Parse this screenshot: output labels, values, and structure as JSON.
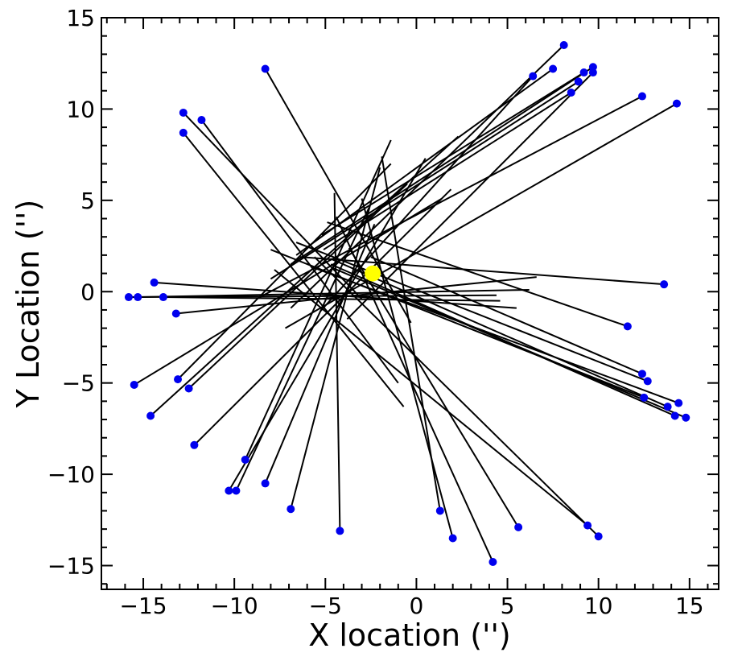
{
  "chart_data": {
    "type": "scatter",
    "title": "",
    "xlabel": "X location ('')",
    "ylabel": "Y Location ('')",
    "xlim": [
      -17.3,
      16.6
    ],
    "ylim": [
      -16.3,
      15.0
    ],
    "xticks": [
      -15,
      -10,
      -5,
      0,
      5,
      10,
      15
    ],
    "yticks": [
      -15,
      -10,
      -5,
      0,
      5,
      10,
      15
    ],
    "xtick_labels": [
      "−15",
      "−10",
      "−5",
      "0",
      "5",
      "10",
      "15"
    ],
    "ytick_labels": [
      "−15",
      "−10",
      "−5",
      "0",
      "5",
      "10",
      "15"
    ],
    "grid": false,
    "legend": "none",
    "center": {
      "x": -2.4,
      "y": 1.0,
      "color": "#ffff00"
    },
    "marker_color": "#0000ee",
    "line_color": "#000000",
    "segments": [
      {
        "start": [
          -8.3,
          12.2
        ],
        "end": [
          -0.3,
          -1.7
        ]
      },
      {
        "start": [
          -12.8,
          9.8
        ],
        "end": [
          -3.0,
          -0.4
        ]
      },
      {
        "start": [
          -11.8,
          9.4
        ],
        "end": [
          -1.0,
          -5.0
        ]
      },
      {
        "start": [
          -12.8,
          8.7
        ],
        "end": [
          -0.7,
          -6.3
        ]
      },
      {
        "start": [
          8.1,
          13.5
        ],
        "end": [
          -6.9,
          -0.9
        ]
      },
      {
        "start": [
          6.4,
          11.8
        ],
        "end": [
          -5.3,
          -1.1
        ]
      },
      {
        "start": [
          7.5,
          12.2
        ],
        "end": [
          -6.6,
          2.0
        ]
      },
      {
        "start": [
          9.2,
          12.0
        ],
        "end": [
          -5.2,
          3.1
        ]
      },
      {
        "start": [
          9.7,
          12.3
        ],
        "end": [
          -6.9,
          1.5
        ]
      },
      {
        "start": [
          9.7,
          12.0
        ],
        "end": [
          -3.8,
          -1.5
        ]
      },
      {
        "start": [
          8.9,
          11.5
        ],
        "end": [
          -8.0,
          0.7
        ]
      },
      {
        "start": [
          8.5,
          10.9
        ],
        "end": [
          -5.1,
          2.3
        ]
      },
      {
        "start": [
          12.4,
          10.7
        ],
        "end": [
          -8.6,
          -0.3
        ]
      },
      {
        "start": [
          14.3,
          10.3
        ],
        "end": [
          -7.2,
          -2.0
        ]
      },
      {
        "start": [
          13.6,
          0.4
        ],
        "end": [
          -6.4,
          1.9
        ]
      },
      {
        "start": [
          11.6,
          -1.9
        ],
        "end": [
          -4.9,
          3.8
        ]
      },
      {
        "start": [
          12.4,
          -4.5
        ],
        "end": [
          -2.5,
          1.9
        ]
      },
      {
        "start": [
          12.7,
          -4.9
        ],
        "end": [
          -6.6,
          2.7
        ]
      },
      {
        "start": [
          12.5,
          -5.8
        ],
        "end": [
          -8.0,
          2.3
        ]
      },
      {
        "start": [
          14.4,
          -6.1
        ],
        "end": [
          -5.6,
          1.3
        ]
      },
      {
        "start": [
          13.8,
          -6.3
        ],
        "end": [
          -4.7,
          1.8
        ]
      },
      {
        "start": [
          14.2,
          -6.8
        ],
        "end": [
          -4.7,
          1.5
        ]
      },
      {
        "start": [
          14.8,
          -6.9
        ],
        "end": [
          -4.6,
          1.3
        ]
      },
      {
        "start": [
          -15.8,
          -0.3
        ],
        "end": [
          4.4,
          -0.2
        ]
      },
      {
        "start": [
          -15.3,
          -0.3
        ],
        "end": [
          6.2,
          0.1
        ]
      },
      {
        "start": [
          -14.4,
          0.5
        ],
        "end": [
          5.5,
          -0.9
        ]
      },
      {
        "start": [
          -13.9,
          -0.3
        ],
        "end": [
          4.6,
          -0.5
        ]
      },
      {
        "start": [
          -13.2,
          -1.2
        ],
        "end": [
          6.6,
          0.8
        ]
      },
      {
        "start": [
          -15.5,
          -5.1
        ],
        "end": [
          1.4,
          5.1
        ]
      },
      {
        "start": [
          -13.1,
          -4.8
        ],
        "end": [
          -1.4,
          7.0
        ]
      },
      {
        "start": [
          -14.6,
          -6.8
        ],
        "end": [
          2.3,
          8.5
        ]
      },
      {
        "start": [
          -12.5,
          -5.3
        ],
        "end": [
          -0.5,
          5.9
        ]
      },
      {
        "start": [
          -12.2,
          -8.4
        ],
        "end": [
          1.9,
          5.6
        ]
      },
      {
        "start": [
          -9.4,
          -9.2
        ],
        "end": [
          -1.4,
          8.3
        ]
      },
      {
        "start": [
          -10.3,
          -10.9
        ],
        "end": [
          0.5,
          7.3
        ]
      },
      {
        "start": [
          -9.9,
          -10.9
        ],
        "end": [
          -2.6,
          4.6
        ]
      },
      {
        "start": [
          -8.3,
          -10.5
        ],
        "end": [
          -2.3,
          3.7
        ]
      },
      {
        "start": [
          -6.9,
          -11.9
        ],
        "end": [
          -2.0,
          6.8
        ]
      },
      {
        "start": [
          -4.2,
          -13.1
        ],
        "end": [
          -4.5,
          5.4
        ]
      },
      {
        "start": [
          1.3,
          -12.0
        ],
        "end": [
          -1.9,
          7.4
        ]
      },
      {
        "start": [
          2.0,
          -13.5
        ],
        "end": [
          -3.0,
          5.1
        ]
      },
      {
        "start": [
          5.6,
          -12.9
        ],
        "end": [
          -3.7,
          2.4
        ]
      },
      {
        "start": [
          4.2,
          -14.8
        ],
        "end": [
          -4.4,
          4.1
        ]
      },
      {
        "start": [
          9.4,
          -12.8
        ],
        "end": [
          -7.8,
          1.2
        ]
      },
      {
        "start": [
          10.0,
          -13.4
        ],
        "end": [
          -5.6,
          1.9
        ]
      }
    ]
  }
}
